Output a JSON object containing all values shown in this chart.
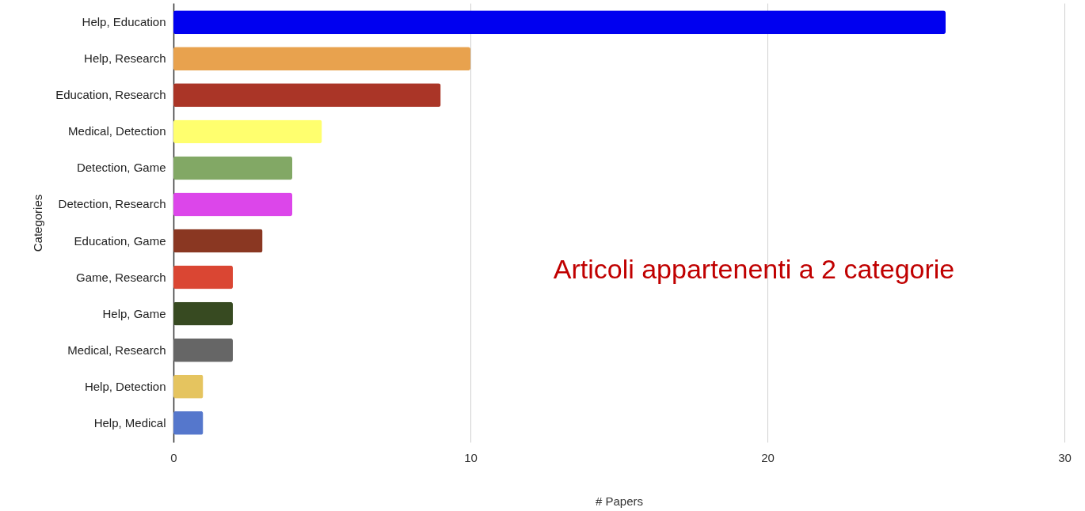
{
  "chart_data": {
    "type": "bar",
    "orientation": "horizontal",
    "xlabel": "# Papers",
    "ylabel": "Categories",
    "categories": [
      "Help, Education",
      "Help, Research",
      "Education, Research",
      "Medical, Detection",
      "Detection, Game",
      "Detection, Research",
      "Education, Game",
      "Game, Research",
      "Help, Game",
      "Medical, Research",
      "Help, Detection",
      "Help, Medical"
    ],
    "values": [
      26,
      10,
      9,
      5,
      4,
      4,
      3,
      2,
      2,
      2,
      1,
      1
    ],
    "colors": [
      "#0000f0",
      "#e8a24e",
      "#aa3527",
      "#ffff6e",
      "#82a865",
      "#dc46ea",
      "#8a3722",
      "#da4633",
      "#374a21",
      "#666666",
      "#e5c45f",
      "#5577cc"
    ],
    "xlim": [
      0,
      30
    ],
    "xticks": [
      0,
      10,
      20,
      30
    ],
    "grid": "x",
    "annotations": [
      "Articoli appartenenti a 2 categorie"
    ]
  }
}
